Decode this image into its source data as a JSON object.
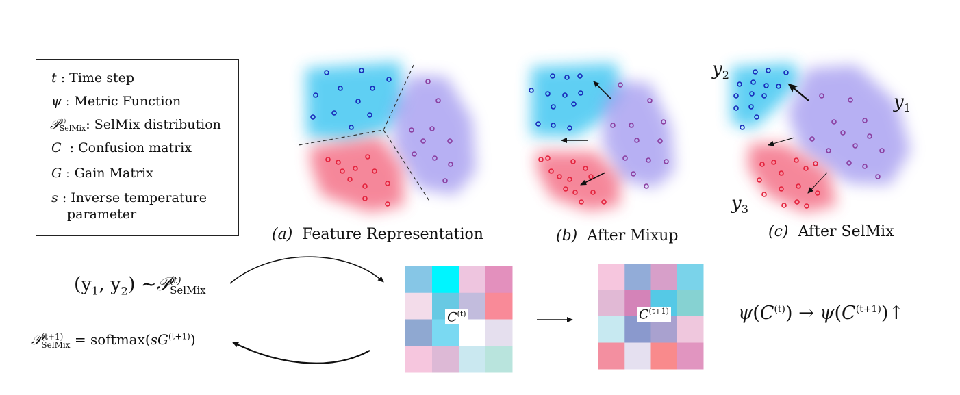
{
  "legend": {
    "items": [
      {
        "symbol": "t",
        "text": "Time step"
      },
      {
        "symbol": "ψ",
        "text": "Metric Function"
      },
      {
        "symbol": "𝒫",
        "sup": "(t)",
        "sub": "SelMix",
        "text": "SelMix distribution"
      },
      {
        "symbol": "C",
        "text": "Confusion matrix"
      },
      {
        "symbol": "G",
        "text": "Gain Matrix"
      },
      {
        "symbol": "s",
        "text": "Inverse temperature"
      }
    ],
    "continuation": "parameter",
    "separator": ":"
  },
  "panels": {
    "a": {
      "tag": "(a)",
      "caption": "Feature Representation"
    },
    "b": {
      "tag": "(b)",
      "caption": "After Mixup"
    },
    "c": {
      "tag": "(c)",
      "caption": "After SelMix"
    }
  },
  "class_labels": {
    "y1": {
      "base": "y",
      "sub": "1"
    },
    "y2": {
      "base": "y",
      "sub": "2"
    },
    "y3": {
      "base": "y",
      "sub": "3"
    }
  },
  "equations": {
    "sampling": {
      "lhs": "(y",
      "s1": "1",
      "comma": ", y",
      "s2": "2",
      "rp": ")",
      "op": "∼",
      "dist": "𝒫",
      "sup": "(t)",
      "sub": "SelMix"
    },
    "update": {
      "dist": "𝒫",
      "sup": "(t+1)",
      "sub": "SelMix",
      "eq": "= softmax(",
      "s": "s",
      "G": "G",
      "gsup": "(t+1)",
      "close": ")"
    },
    "metric": {
      "psi1": "ψ",
      "c1": "C",
      "sup1": "(t)",
      "arrow": "→",
      "psi2": "ψ",
      "c2": "C",
      "sup2": "(t+1)",
      "up": "↑"
    }
  },
  "matrices": {
    "left": {
      "label": "C",
      "sup": "(t)",
      "cells": [
        "#86c6e6",
        "#00f5ff",
        "#eec5df",
        "#e390bd",
        "#f3dcea",
        "#67c9e3",
        "#c2bcdd",
        "#f98a98",
        "#8fa8d1",
        "#7ad9f2",
        "#ffffff",
        "#e5dfee",
        "#f6c6de",
        "#ddb9d6",
        "#cae8f0",
        "#b9e4dd"
      ]
    },
    "right": {
      "label": "C",
      "sup": "(t+1)",
      "cells": [
        "#f6c6de",
        "#92acd8",
        "#d79fc9",
        "#7ad3ea",
        "#e1b9d5",
        "#d483b8",
        "#55c9e6",
        "#86d2d2",
        "#c7e9f1",
        "#8a99cd",
        "#a9a1cf",
        "#efc7dd",
        "#f38fa0",
        "#e5e0f0",
        "#f98a8c",
        "#e195c0"
      ]
    }
  },
  "colors": {
    "cyan_cluster": "#2cc0f0",
    "purple_cluster": "#9a90ee",
    "red_cluster": "#f2546f",
    "blue_point": "#1626b8",
    "purple_point": "#8a3c9e",
    "red_point": "#e3203a"
  }
}
